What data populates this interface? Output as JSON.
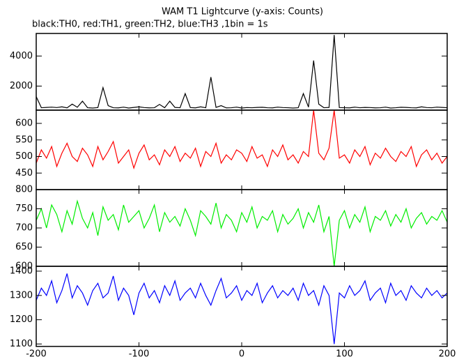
{
  "chart_data": {
    "type": "line",
    "title": "WAM T1 Lightcurve (y-axis: Counts)",
    "subtitle": "black:TH0, red:TH1, green:TH2, blue:TH3 ,1bin = 1s",
    "xlim": [
      -200,
      200
    ],
    "xticks": [
      -200,
      -100,
      0,
      100,
      200
    ],
    "x": [
      -200,
      -195,
      -190,
      -185,
      -180,
      -175,
      -170,
      -165,
      -160,
      -155,
      -150,
      -145,
      -140,
      -135,
      -130,
      -125,
      -120,
      -115,
      -110,
      -105,
      -100,
      -95,
      -90,
      -85,
      -80,
      -75,
      -70,
      -65,
      -60,
      -55,
      -50,
      -45,
      -40,
      -35,
      -30,
      -25,
      -20,
      -15,
      -10,
      -5,
      0,
      5,
      10,
      15,
      20,
      25,
      30,
      35,
      40,
      45,
      50,
      55,
      60,
      65,
      70,
      75,
      80,
      85,
      90,
      95,
      100,
      105,
      110,
      115,
      120,
      125,
      130,
      135,
      140,
      145,
      150,
      155,
      160,
      165,
      170,
      175,
      180,
      185,
      190,
      195,
      200
    ],
    "series": [
      {
        "color": "#000000",
        "ylim": [
          400,
          5500
        ],
        "yticks": [
          2000,
          4000
        ],
        "values": [
          1300,
          560,
          580,
          600,
          570,
          620,
          550,
          800,
          590,
          1000,
          560,
          540,
          570,
          1900,
          700,
          560,
          550,
          600,
          540,
          580,
          620,
          570,
          550,
          560,
          780,
          560,
          1000,
          580,
          560,
          1500,
          570,
          550,
          620,
          560,
          2600,
          580,
          700,
          550,
          560,
          600,
          540,
          570,
          560,
          580,
          590,
          560,
          550,
          600,
          570,
          560,
          540,
          560,
          1500,
          600,
          3700,
          800,
          560,
          580,
          5400,
          570,
          560,
          550,
          600,
          560,
          580,
          570,
          550,
          560,
          600,
          540,
          560,
          590,
          580,
          560,
          550,
          620,
          570,
          560,
          600,
          580,
          560
        ]
      },
      {
        "color": "#ff0000",
        "ylim": [
          400,
          640
        ],
        "yticks": [
          450,
          500,
          550,
          600
        ],
        "values": [
          480,
          520,
          495,
          530,
          470,
          510,
          540,
          500,
          485,
          525,
          505,
          470,
          530,
          490,
          515,
          545,
          480,
          500,
          520,
          465,
          510,
          535,
          490,
          505,
          475,
          520,
          500,
          530,
          485,
          510,
          495,
          525,
          470,
          515,
          500,
          540,
          480,
          505,
          490,
          520,
          510,
          485,
          530,
          495,
          505,
          470,
          520,
          500,
          535,
          490,
          505,
          480,
          515,
          500,
          640,
          510,
          490,
          525,
          640,
          495,
          505,
          480,
          520,
          500,
          530,
          475,
          510,
          495,
          525,
          500,
          485,
          515,
          500,
          530,
          470,
          505,
          520,
          490,
          510,
          480,
          500
        ]
      },
      {
        "color": "#00ee00",
        "ylim": [
          600,
          800
        ],
        "yticks": [
          600,
          650,
          700,
          750,
          800
        ],
        "values": [
          720,
          750,
          700,
          760,
          735,
          690,
          745,
          710,
          770,
          725,
          700,
          740,
          680,
          755,
          720,
          735,
          695,
          760,
          715,
          730,
          745,
          700,
          725,
          760,
          690,
          740,
          715,
          730,
          705,
          750,
          720,
          680,
          745,
          730,
          710,
          765,
          700,
          735,
          720,
          690,
          740,
          715,
          755,
          700,
          730,
          720,
          745,
          690,
          735,
          710,
          725,
          750,
          700,
          740,
          715,
          760,
          690,
          730,
          600,
          720,
          745,
          700,
          735,
          715,
          755,
          690,
          730,
          720,
          745,
          705,
          735,
          715,
          750,
          700,
          725,
          740,
          710,
          730,
          720,
          745,
          715
        ]
      },
      {
        "color": "#0000ff",
        "ylim": [
          1090,
          1420
        ],
        "yticks": [
          1100,
          1200,
          1300,
          1400
        ],
        "values": [
          1280,
          1330,
          1300,
          1360,
          1270,
          1320,
          1390,
          1290,
          1340,
          1310,
          1260,
          1320,
          1350,
          1290,
          1310,
          1380,
          1280,
          1330,
          1300,
          1220,
          1310,
          1350,
          1290,
          1320,
          1270,
          1340,
          1300,
          1360,
          1280,
          1310,
          1330,
          1290,
          1350,
          1300,
          1260,
          1320,
          1370,
          1290,
          1310,
          1340,
          1280,
          1320,
          1300,
          1350,
          1270,
          1310,
          1340,
          1290,
          1320,
          1300,
          1330,
          1280,
          1350,
          1300,
          1320,
          1260,
          1340,
          1300,
          1100,
          1310,
          1290,
          1340,
          1300,
          1320,
          1360,
          1280,
          1310,
          1330,
          1270,
          1350,
          1300,
          1320,
          1280,
          1340,
          1310,
          1290,
          1330,
          1300,
          1320,
          1290,
          1310
        ]
      }
    ]
  }
}
